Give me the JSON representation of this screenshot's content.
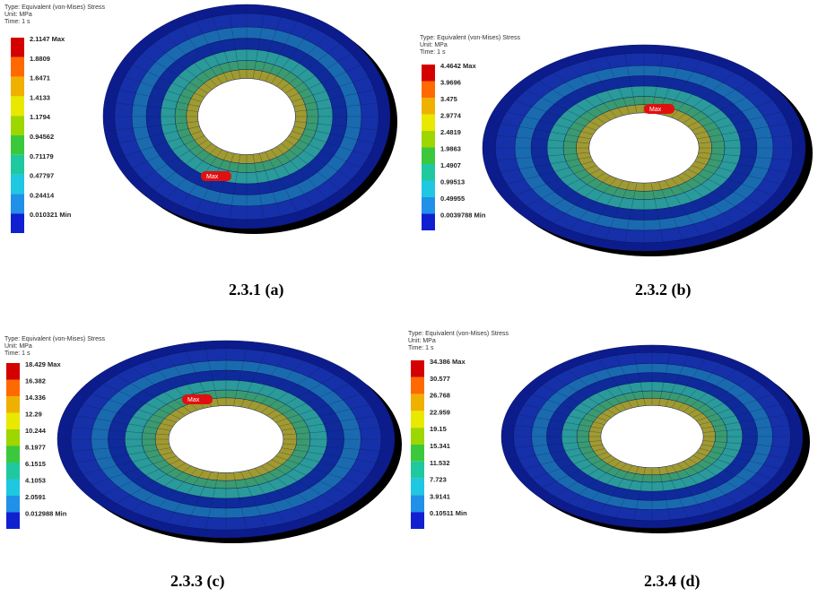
{
  "panels": [
    {
      "header": [
        "Type: Equivalent (von-Mises) Stress",
        "Unit: MPa",
        "Time: 1 s"
      ],
      "legend": [
        "2.1147 Max",
        "1.8809",
        "1.6471",
        "1.4133",
        "1.1794",
        "0.94562",
        "0.71179",
        "0.47797",
        "0.24414",
        "0.010321 Min"
      ],
      "marker": "Max",
      "caption": "2.3.1 (a)"
    },
    {
      "header": [
        "Type: Equivalent (von-Mises) Stress",
        "Unit: MPa",
        "Time: 1 s"
      ],
      "legend": [
        "4.4642 Max",
        "3.9696",
        "3.475",
        "2.9774",
        "2.4819",
        "1.9863",
        "1.4907",
        "0.99513",
        "0.49955",
        "0.0039788 Min"
      ],
      "marker": "Max",
      "caption": "2.3.2 (b)"
    },
    {
      "header": [
        "Type: Equivalent (von-Mises) Stress",
        "Unit: MPa",
        "Time: 1 s"
      ],
      "legend": [
        "18.429 Max",
        "16.382",
        "14.336",
        "12.29",
        "10.244",
        "8.1977",
        "6.1515",
        "4.1053",
        "2.0591",
        "0.012988 Min"
      ],
      "marker": "Max",
      "caption": "2.3.3 (c)"
    },
    {
      "header": [
        "Type: Equivalent (von-Mises) Stress",
        "Unit: MPa",
        "Time: 1 s"
      ],
      "legend": [
        "34.386 Max",
        "30.577",
        "26.768",
        "22.959",
        "19.15",
        "15.341",
        "11.532",
        "7.723",
        "3.9141",
        "0.10511 Min"
      ],
      "caption": "2.3.4 (d)"
    }
  ]
}
